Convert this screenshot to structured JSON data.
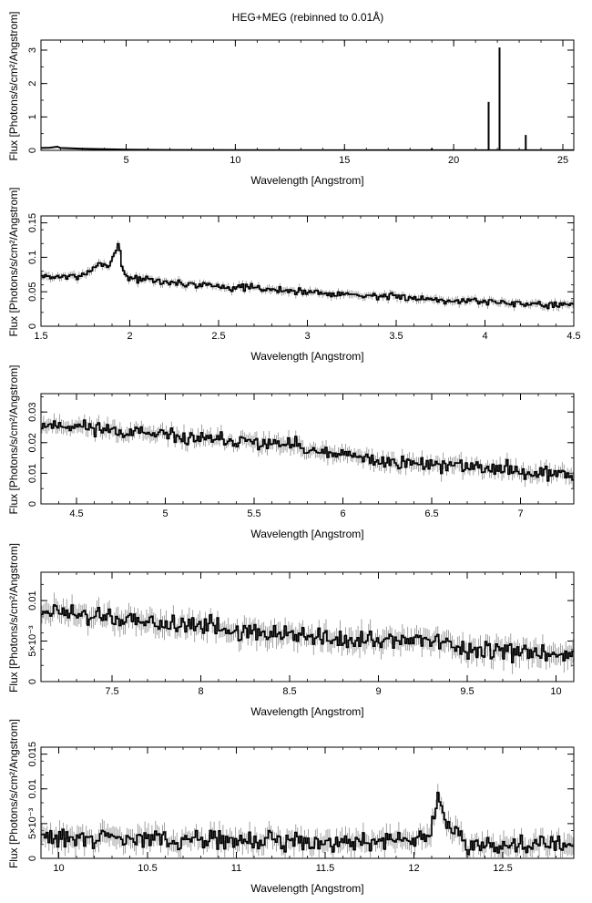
{
  "figure": {
    "title": "HEG+MEG (rebinned to 0.01Å)"
  },
  "chart_data": [
    {
      "type": "line",
      "xlabel": "Wavelength [Angstrom]",
      "ylabel": "Flux [Photons/s/cm²/Angstrom]",
      "xlim": [
        1.1,
        25.5
      ],
      "ylim": [
        0,
        3.3
      ],
      "xticks": [
        5,
        10,
        15,
        20,
        25
      ],
      "xtick_labels": [
        "5",
        "10",
        "15",
        "20",
        "25"
      ],
      "yticks": [
        0,
        1,
        2,
        3
      ],
      "ytick_labels": [
        "0",
        "1",
        "2",
        "3"
      ],
      "grid": false,
      "lines": [
        {
          "x": 21.6,
          "y": 1.45
        },
        {
          "x": 22.1,
          "y": 3.08
        },
        {
          "x": 23.3,
          "y": 0.46
        },
        {
          "x": 19.0,
          "y": 0.06
        }
      ],
      "continuum": [
        [
          1.1,
          0.07
        ],
        [
          1.5,
          0.08
        ],
        [
          1.85,
          0.11
        ],
        [
          2.0,
          0.07
        ],
        [
          3,
          0.05
        ],
        [
          5,
          0.02
        ],
        [
          7,
          0.012
        ],
        [
          10,
          0.005
        ],
        [
          13,
          0.003
        ],
        [
          16,
          0.002
        ],
        [
          19,
          0.002
        ],
        [
          22,
          0.002
        ],
        [
          25.5,
          0.002
        ]
      ]
    },
    {
      "type": "line",
      "xlabel": "Wavelength [Angstrom]",
      "ylabel": "Flux [Photons/s/cm²/Angstrom]",
      "xlim": [
        1.5,
        4.5
      ],
      "ylim": [
        0,
        0.16
      ],
      "xticks": [
        1.5,
        2,
        2.5,
        3,
        3.5,
        4,
        4.5
      ],
      "xtick_labels": [
        "1.5",
        "2",
        "2.5",
        "3",
        "3.5",
        "4",
        "4.5"
      ],
      "yticks": [
        0,
        0.05,
        0.1,
        0.15
      ],
      "ytick_labels": [
        "0",
        "0.05",
        "0.1",
        "0.15"
      ],
      "grid": false,
      "trend": [
        [
          1.5,
          0.072
        ],
        [
          1.7,
          0.072
        ],
        [
          1.8,
          0.082
        ],
        [
          1.85,
          0.095
        ],
        [
          1.88,
          0.085
        ],
        [
          1.92,
          0.11
        ],
        [
          1.94,
          0.12
        ],
        [
          1.96,
          0.08
        ],
        [
          2.0,
          0.07
        ],
        [
          2.2,
          0.064
        ],
        [
          2.5,
          0.058
        ],
        [
          3.0,
          0.05
        ],
        [
          3.5,
          0.042
        ],
        [
          4.0,
          0.036
        ],
        [
          4.5,
          0.03
        ]
      ],
      "noise": 0.005,
      "bin": 0.01,
      "seed": 7
    },
    {
      "type": "line",
      "xlabel": "Wavelength [Angstrom]",
      "ylabel": "Flux [Photons/s/cm²/Angstrom]",
      "xlim": [
        4.3,
        7.3
      ],
      "ylim": [
        0,
        0.036
      ],
      "xticks": [
        4.5,
        5,
        5.5,
        6,
        6.5,
        7
      ],
      "xtick_labels": [
        "4.5",
        "5",
        "5.5",
        "6",
        "6.5",
        "7"
      ],
      "yticks": [
        0,
        0.01,
        0.02,
        0.03
      ],
      "ytick_labels": [
        "0",
        "0.01",
        "0.02",
        "0.03"
      ],
      "grid": false,
      "trend": [
        [
          4.3,
          0.026
        ],
        [
          4.6,
          0.025
        ],
        [
          5.0,
          0.022
        ],
        [
          5.5,
          0.02
        ],
        [
          5.75,
          0.019
        ],
        [
          5.8,
          0.017
        ],
        [
          6.0,
          0.016
        ],
        [
          6.2,
          0.014
        ],
        [
          6.5,
          0.013
        ],
        [
          7.0,
          0.011
        ],
        [
          7.3,
          0.009
        ]
      ],
      "noise": 0.0022,
      "bin": 0.01,
      "seed": 11
    },
    {
      "type": "line",
      "xlabel": "Wavelength [Angstrom]",
      "ylabel": "Flux [Photons/s/cm²/Angstrom]",
      "xlim": [
        7.1,
        10.1
      ],
      "ylim": [
        0,
        0.0135
      ],
      "xticks": [
        7.5,
        8,
        8.5,
        9,
        9.5,
        10
      ],
      "xtick_labels": [
        "7.5",
        "8",
        "8.5",
        "9",
        "9.5",
        "10"
      ],
      "yticks": [
        0,
        0.005,
        0.01
      ],
      "ytick_labels": [
        "0",
        "5×10⁻³",
        "0.01"
      ],
      "grid": false,
      "trend": [
        [
          7.1,
          0.0088
        ],
        [
          7.5,
          0.0078
        ],
        [
          8.0,
          0.0068
        ],
        [
          8.5,
          0.0058
        ],
        [
          9.0,
          0.0048
        ],
        [
          9.22,
          0.0055
        ],
        [
          9.5,
          0.0038
        ],
        [
          10.1,
          0.0032
        ]
      ],
      "noise": 0.0012,
      "bin": 0.01,
      "seed": 19
    },
    {
      "type": "line",
      "xlabel": "Wavelength [Angstrom]",
      "ylabel": "Flux [Photons/s/cm²/Angstrom]",
      "xlim": [
        9.9,
        12.9
      ],
      "ylim": [
        0,
        0.016
      ],
      "xticks": [
        10,
        10.5,
        11,
        11.5,
        12,
        12.5
      ],
      "xtick_labels": [
        "10",
        "10.5",
        "11",
        "11.5",
        "12",
        "12.5"
      ],
      "yticks": [
        0,
        0.005,
        0.01,
        0.015
      ],
      "ytick_labels": [
        "0",
        "5×10⁻³",
        "0.01",
        "0.015"
      ],
      "grid": false,
      "trend": [
        [
          9.9,
          0.003
        ],
        [
          10.5,
          0.0028
        ],
        [
          11.0,
          0.0025
        ],
        [
          11.5,
          0.0025
        ],
        [
          12.0,
          0.0025
        ],
        [
          12.1,
          0.004
        ],
        [
          12.14,
          0.0095
        ],
        [
          12.18,
          0.005
        ],
        [
          12.3,
          0.0022
        ],
        [
          12.9,
          0.0018
        ]
      ],
      "noise": 0.0013,
      "bin": 0.01,
      "seed": 29
    }
  ]
}
